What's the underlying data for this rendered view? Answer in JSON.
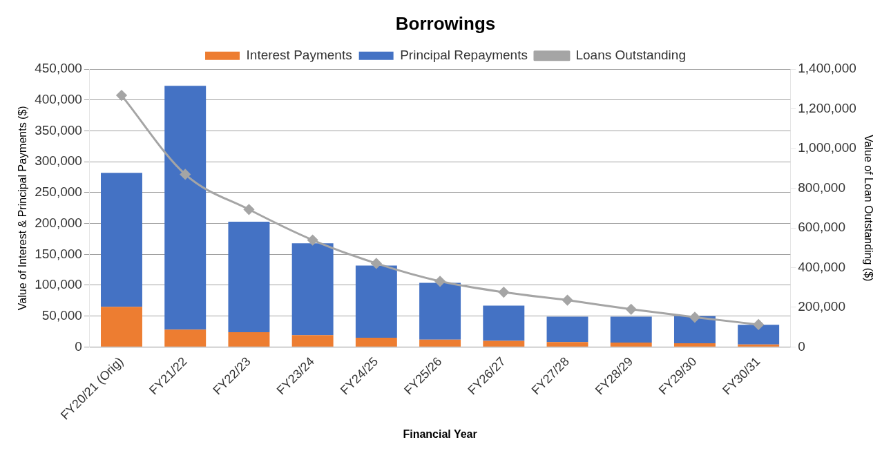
{
  "chart_data": {
    "type": "bar",
    "title": "Borrowings",
    "xlabel": "Financial Year",
    "ylabel": "Value of Interest & Principal Payments ($)",
    "y2label": "Value of Loan Outstanding ($)",
    "categories": [
      "FY20/21 (Orig)",
      "FY21/22",
      "FY22/23",
      "FY23/24",
      "FY24/25",
      "FY25/26",
      "FY26/27",
      "FY27/28",
      "FY28/29",
      "FY29/30",
      "FY30/31"
    ],
    "stacked": true,
    "series": [
      {
        "name": "Interest Payments",
        "color": "#ed7d31",
        "values": [
          65000,
          28000,
          24000,
          19000,
          15000,
          12000,
          10000,
          8000,
          7000,
          6000,
          4000
        ]
      },
      {
        "name": "Principal Repayments",
        "color": "#4472c4",
        "values": [
          217000,
          395000,
          179000,
          149000,
          117000,
          92000,
          57000,
          41000,
          42000,
          44000,
          32000
        ]
      },
      {
        "name": "Loans Outstanding",
        "type": "line",
        "axis": "y2",
        "color": "#a5a5a5",
        "marker": "diamond",
        "values": [
          1268000,
          870000,
          693000,
          539000,
          421000,
          331000,
          276000,
          236000,
          190000,
          150000,
          113000
        ]
      }
    ],
    "ylim": [
      0,
      450000
    ],
    "yticks": [
      0,
      {
        "value": 50000,
        "label": "50,000"
      },
      {
        "value": 100000,
        "label": "100,000"
      },
      {
        "value": 150000,
        "label": "150,000"
      },
      {
        "value": 200000,
        "label": "200,000"
      },
      {
        "value": 250000,
        "label": "250,000"
      },
      {
        "value": 300000,
        "label": "300,000"
      },
      {
        "value": 350000,
        "label": "350,000"
      },
      {
        "value": 400000,
        "label": "400,000"
      },
      {
        "value": 450000,
        "label": "450,000"
      }
    ],
    "y2lim": [
      0,
      1400000
    ],
    "y2ticks": [
      0,
      {
        "value": 200000,
        "label": "200,000"
      },
      {
        "value": 400000,
        "label": "400,000"
      },
      {
        "value": 600000,
        "label": "600,000"
      },
      {
        "value": 800000,
        "label": "800,000"
      },
      {
        "value": 1000000,
        "label": "1,000,000"
      },
      {
        "value": 1200000,
        "label": "1,200,000"
      },
      {
        "value": 1400000,
        "label": "1,400,000"
      }
    ],
    "grid": "y",
    "legend": "top"
  }
}
